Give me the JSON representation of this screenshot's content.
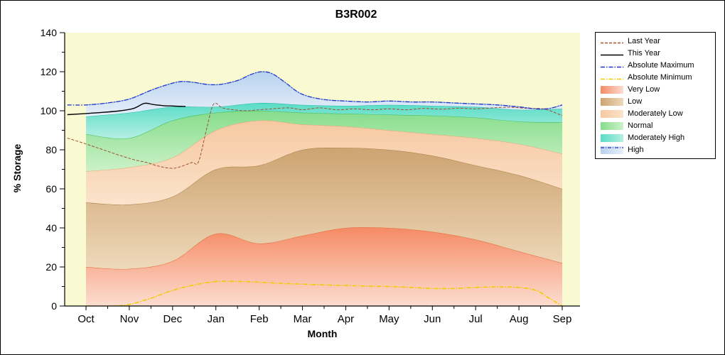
{
  "legend": {
    "position": "right",
    "entries": [
      {
        "label": "Last Year",
        "swatch": "line",
        "color": "#a0522d",
        "dash": "4 2"
      },
      {
        "label": "This Year",
        "swatch": "line",
        "color": "#000000",
        "dash": ""
      },
      {
        "label": "Absolute Maximum",
        "swatch": "line",
        "color": "#2233cc",
        "dash": "6 2 1.5 2"
      },
      {
        "label": "Absolute Minimum",
        "swatch": "line",
        "color": "#f2cc00",
        "dash": "6 2 1.5 2"
      },
      {
        "label": "Very Low",
        "swatch": "band",
        "color": "#f58a64",
        "color2": "#fcddd0"
      },
      {
        "label": "Low",
        "swatch": "band",
        "color": "#cda371",
        "color2": "#eed9ba"
      },
      {
        "label": "Moderately Low",
        "swatch": "band",
        "color": "#f6c8a1",
        "color2": "#fbe3cb"
      },
      {
        "label": "Normal",
        "swatch": "band",
        "color": "#86dd8c",
        "color2": "#ccf1c8"
      },
      {
        "label": "Moderately High",
        "swatch": "band",
        "color": "#58dcc6",
        "color2": "#b5efe2"
      },
      {
        "label": "High",
        "swatch": "band",
        "color": "#b8d2ee",
        "color2": "#e7effa",
        "overlay_line": "#2233cc"
      }
    ]
  },
  "chart_data": {
    "type": "area",
    "title": "B3R002",
    "xlabel": "Month",
    "ylabel": "% Storage",
    "ylim": [
      0,
      140
    ],
    "ytick_step": 20,
    "ytick_minor": 10,
    "grid": false,
    "plot_bg": "#fafad2",
    "months": [
      "Oct",
      "Nov",
      "Dec",
      "Jan",
      "Feb",
      "Mar",
      "Apr",
      "May",
      "Jun",
      "Jul",
      "Aug",
      "Sep"
    ],
    "bands": [
      {
        "name": "Very Low",
        "upper": [
          20,
          19,
          23,
          37,
          32,
          36,
          40,
          40,
          38,
          34,
          28,
          22
        ],
        "color_top": "#f58a64",
        "color_bottom": "#fcddd0",
        "edge": "#e06a3c"
      },
      {
        "name": "Low",
        "upper": [
          53,
          52,
          56,
          70,
          72,
          80,
          81,
          80,
          77,
          72,
          67,
          60
        ],
        "color_top": "#cda371",
        "color_bottom": "#eed9ba",
        "edge": "#aa7c44"
      },
      {
        "name": "Moderately Low",
        "upper": [
          69,
          71,
          76,
          90,
          95,
          93,
          92,
          90,
          88,
          86,
          83,
          78
        ],
        "color_top": "#f6c8a1",
        "color_bottom": "#fbe3cb",
        "edge": "#e3a876"
      },
      {
        "name": "Normal",
        "upper": [
          88,
          86,
          95,
          99,
          100,
          99,
          98.5,
          98,
          97.5,
          96.5,
          94.5,
          94
        ],
        "color_top": "#86dd8c",
        "color_bottom": "#ccf1c8",
        "edge": "#44bb55"
      },
      {
        "name": "Moderately High",
        "upper": [
          97,
          99,
          102,
          102,
          104,
          103,
          102.5,
          103,
          102.5,
          102,
          100.5,
          101
        ],
        "color_top": "#58dcc6",
        "color_bottom": "#b5efe2",
        "edge": "#1fb9a4"
      },
      {
        "name": "High",
        "upper": [
          103,
          106,
          114,
          113.5,
          120,
          107.5,
          104.5,
          105,
          104.5,
          103.5,
          101.5,
          103
        ],
        "upper_from_line": "Absolute Maximum",
        "color_top": "#b8d2ee",
        "color_bottom": "#e7effa",
        "edge": "#6f9fd8"
      }
    ],
    "lines": [
      {
        "name": "Last Year",
        "color": "#a0522d",
        "dash": "4 2",
        "width": 1,
        "points": [
          [
            -0.43,
            86
          ],
          [
            0,
            83
          ],
          [
            0.4,
            80
          ],
          [
            0.8,
            77
          ],
          [
            1.1,
            75
          ],
          [
            1.4,
            73.5
          ],
          [
            1.7,
            71.5
          ],
          [
            2,
            70.5
          ],
          [
            2.2,
            71.5
          ],
          [
            2.45,
            73.5
          ],
          [
            2.6,
            74
          ],
          [
            2.8,
            92
          ],
          [
            2.95,
            103.5
          ],
          [
            3.15,
            101.5
          ],
          [
            3.4,
            100.5
          ],
          [
            3.7,
            100
          ],
          [
            4,
            100.5
          ],
          [
            4.3,
            101
          ],
          [
            4.7,
            101.5
          ],
          [
            5,
            100.5
          ],
          [
            5.4,
            101.5
          ],
          [
            5.8,
            100.5
          ],
          [
            6.2,
            101
          ],
          [
            6.6,
            100.5
          ],
          [
            7,
            101
          ],
          [
            7.4,
            100.5
          ],
          [
            7.8,
            101.2
          ],
          [
            8.2,
            100.8
          ],
          [
            8.6,
            101.3
          ],
          [
            9,
            101
          ],
          [
            9.4,
            101.5
          ],
          [
            9.8,
            101.8
          ],
          [
            10.2,
            101.2
          ],
          [
            10.6,
            100.8
          ],
          [
            11,
            97.5
          ]
        ]
      },
      {
        "name": "This Year",
        "color": "#000000",
        "dash": "",
        "width": 1.4,
        "points": [
          [
            -0.43,
            98
          ],
          [
            0,
            98.6
          ],
          [
            0.4,
            99.2
          ],
          [
            0.8,
            100
          ],
          [
            1.1,
            101.2
          ],
          [
            1.35,
            103.8
          ],
          [
            1.55,
            103.2
          ],
          [
            1.8,
            102.6
          ],
          [
            2.05,
            102.4
          ],
          [
            2.3,
            102.2
          ]
        ]
      },
      {
        "name": "Absolute Maximum",
        "color": "#2233cc",
        "dash": "6 2 1.5 2",
        "width": 1.3,
        "points": [
          [
            -0.43,
            103
          ],
          [
            0,
            103
          ],
          [
            0.5,
            104
          ],
          [
            1,
            106
          ],
          [
            1.5,
            110.5
          ],
          [
            1.9,
            113.5
          ],
          [
            2.2,
            115
          ],
          [
            2.5,
            114.5
          ],
          [
            2.8,
            113.5
          ],
          [
            3.1,
            113.5
          ],
          [
            3.5,
            115.5
          ],
          [
            3.8,
            118.5
          ],
          [
            4.05,
            120
          ],
          [
            4.3,
            119
          ],
          [
            4.6,
            114.5
          ],
          [
            4.9,
            109.5
          ],
          [
            5.2,
            107
          ],
          [
            5.6,
            105.5
          ],
          [
            6,
            105
          ],
          [
            6.5,
            104.5
          ],
          [
            7,
            105
          ],
          [
            7.5,
            104.5
          ],
          [
            8,
            104.5
          ],
          [
            8.5,
            104
          ],
          [
            9,
            103.5
          ],
          [
            9.5,
            103
          ],
          [
            10,
            102
          ],
          [
            10.4,
            101
          ],
          [
            10.7,
            101.2
          ],
          [
            11,
            103
          ]
        ]
      },
      {
        "name": "Absolute Minimum",
        "color": "#f2cc00",
        "dash": "6 2 1.5 2",
        "width": 1.6,
        "points": [
          [
            0,
            0
          ],
          [
            0.6,
            0
          ],
          [
            1,
            0.8
          ],
          [
            1.5,
            4
          ],
          [
            2,
            8
          ],
          [
            2.5,
            10.8
          ],
          [
            3,
            12.5
          ],
          [
            3.5,
            12.6
          ],
          [
            4,
            12.2
          ],
          [
            4.5,
            11.6
          ],
          [
            5,
            11.2
          ],
          [
            5.5,
            10.8
          ],
          [
            6,
            10.5
          ],
          [
            6.5,
            10.2
          ],
          [
            7,
            10
          ],
          [
            7.5,
            9.5
          ],
          [
            8,
            9
          ],
          [
            8.5,
            9
          ],
          [
            9,
            9.5
          ],
          [
            9.5,
            9.8
          ],
          [
            10,
            9.5
          ],
          [
            10.4,
            8
          ],
          [
            10.7,
            4
          ],
          [
            11,
            0
          ]
        ]
      }
    ]
  }
}
